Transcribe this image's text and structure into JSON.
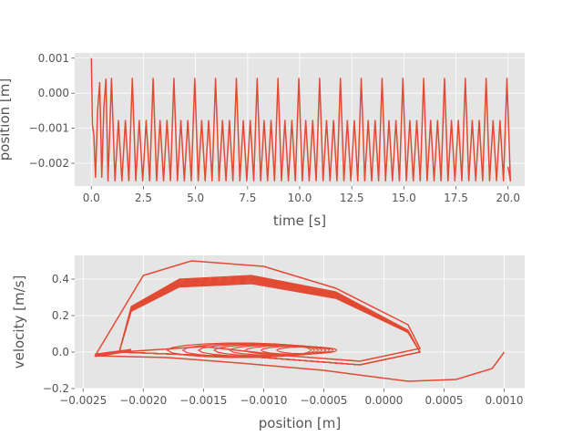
{
  "chart_data": [
    {
      "type": "line",
      "title": "",
      "xlabel": "time [s]",
      "ylabel": "position [m]",
      "xlim": [
        -0.8,
        20.8
      ],
      "ylim": [
        -0.00265,
        0.00115
      ],
      "xticks": [
        0.0,
        2.5,
        5.0,
        7.5,
        10.0,
        12.5,
        15.0,
        17.5,
        20.0
      ],
      "xtick_labels": [
        "0.0",
        "2.5",
        "5.0",
        "7.5",
        "10.0",
        "12.5",
        "15.0",
        "17.5",
        "20.0"
      ],
      "yticks": [
        0.001,
        0.0,
        -0.001,
        -0.002
      ],
      "ytick_labels": [
        "0.001",
        "0.000",
        "−0.001",
        "−0.002"
      ],
      "grid": true,
      "series": [
        {
          "color": "#E24A33",
          "description": "Oscillating position; starts at 0.001 m, settles into period ~0.33 s alternating between -0.0025 m and peaks near 0.0004 m / -0.0008 m",
          "points": [
            [
              0.0,
              0.001
            ],
            [
              0.05,
              -0.0009
            ],
            [
              0.12,
              -0.0012
            ],
            [
              0.2,
              -0.0024
            ],
            [
              0.3,
              -0.0005
            ],
            [
              0.4,
              0.0003
            ],
            [
              0.5,
              -0.0024
            ],
            [
              0.6,
              -0.0004
            ],
            [
              0.7,
              0.0004
            ],
            [
              0.8,
              -0.0025
            ]
          ],
          "period_s": 0.333,
          "min": -0.0025,
          "high_peak": 0.00042,
          "low_peak": -0.00078,
          "end": [
            20.0,
            -0.0021
          ]
        }
      ]
    },
    {
      "type": "line",
      "title": "",
      "xlabel": "position [m]",
      "ylabel": "velocity [m/s]",
      "xlim": [
        -0.00257,
        0.00117
      ],
      "ylim": [
        -0.2,
        0.53
      ],
      "xticks": [
        -0.0025,
        -0.002,
        -0.0015,
        -0.001,
        -0.0005,
        0.0,
        0.0005,
        0.001
      ],
      "xtick_labels": [
        "−0.0025",
        "−0.0020",
        "−0.0015",
        "−0.0010",
        "−0.0005",
        "0.0000",
        "0.0005",
        "0.0010"
      ],
      "yticks": [
        -0.2,
        0.0,
        0.2,
        0.4
      ],
      "ytick_labels": [
        "−0.2",
        "0.0",
        "0.2",
        "0.4"
      ],
      "grid": true,
      "series": [
        {
          "color": "#E24A33",
          "description": "Phase portrait: trajectory starts at (0.001, 0), swings to (-0.0024, -0.02), then settles into a chaotic attractor with upper lobe peaking near 0.42 m/s",
          "path_points": [
            [
              0.001,
              0.0
            ],
            [
              0.0009,
              -0.09
            ],
            [
              0.0006,
              -0.15
            ],
            [
              0.0002,
              -0.16
            ],
            [
              -0.0005,
              -0.1
            ],
            [
              -0.0012,
              -0.06
            ],
            [
              -0.0018,
              -0.03
            ],
            [
              -0.0024,
              -0.02
            ],
            [
              -0.0022,
              0.2
            ],
            [
              -0.002,
              0.42
            ],
            [
              -0.0016,
              0.5
            ],
            [
              -0.001,
              0.47
            ],
            [
              -0.0004,
              0.35
            ],
            [
              0.0002,
              0.15
            ],
            [
              0.0003,
              0.02
            ],
            [
              -0.0002,
              -0.05
            ],
            [
              -0.0008,
              -0.02
            ],
            [
              -0.0015,
              0.03
            ],
            [
              -0.0022,
              0.0
            ]
          ],
          "upper_lobe_peak_velocity": 0.42
        }
      ]
    }
  ]
}
